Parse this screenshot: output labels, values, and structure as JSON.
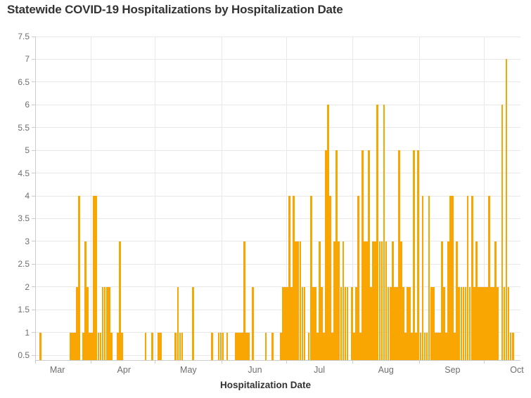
{
  "page": {
    "title": "Statewide COVID-19 Hospitalizations by Hospitalization Date"
  },
  "chart_data": {
    "type": "bar",
    "title": "Statewide COVID-19 Hospitalizations by Hospitalization Date",
    "xlabel": "Hospitalization Date",
    "ylabel": "",
    "legend": "none",
    "grid": "on",
    "bar_color": "#f9a602",
    "grid_color": "#e8e8e8",
    "axis_color": "#cccccc",
    "tick_label_color": "#6e6e6e",
    "title_color": "#333333",
    "ylim": [
      0.39,
      7.5
    ],
    "y_ticks": [
      0.5,
      1,
      1.5,
      2,
      2.5,
      3,
      3.5,
      4,
      4.5,
      5,
      5.5,
      6,
      6.5,
      7,
      7.5
    ],
    "y_tick_labels": [
      "0.5",
      "1",
      "1.5",
      "2",
      "2.5",
      "3",
      "3.5",
      "4",
      "4.5",
      "5",
      "5.5",
      "6",
      "6.5",
      "7",
      "7.5"
    ],
    "x_tick_labels": [
      "Mar",
      "Apr",
      "May",
      "Jun",
      "Jul",
      "Aug",
      "Sep",
      "Oct"
    ],
    "x_domain": [
      "Mar 6",
      "Oct 17"
    ],
    "points_format": [
      "month",
      "day",
      "hospitalizations"
    ],
    "points": [
      [
        "Mar",
        8,
        1
      ],
      [
        "Mar",
        22,
        1
      ],
      [
        "Mar",
        23,
        1
      ],
      [
        "Mar",
        24,
        1
      ],
      [
        "Mar",
        25,
        2
      ],
      [
        "Mar",
        26,
        4
      ],
      [
        "Mar",
        28,
        1
      ],
      [
        "Mar",
        29,
        3
      ],
      [
        "Mar",
        30,
        2
      ],
      [
        "Mar",
        31,
        1
      ],
      [
        "Apr",
        1,
        1
      ],
      [
        "Apr",
        2,
        4
      ],
      [
        "Apr",
        3,
        4
      ],
      [
        "Apr",
        4,
        1
      ],
      [
        "Apr",
        5,
        1
      ],
      [
        "Apr",
        6,
        2
      ],
      [
        "Apr",
        7,
        2
      ],
      [
        "Apr",
        8,
        2
      ],
      [
        "Apr",
        9,
        2
      ],
      [
        "Apr",
        10,
        1
      ],
      [
        "Apr",
        13,
        1
      ],
      [
        "Apr",
        14,
        3
      ],
      [
        "Apr",
        15,
        1
      ],
      [
        "Apr",
        26,
        1
      ],
      [
        "Apr",
        29,
        1
      ],
      [
        "May",
        2,
        1
      ],
      [
        "May",
        3,
        1
      ],
      [
        "May",
        10,
        1
      ],
      [
        "May",
        11,
        2
      ],
      [
        "May",
        12,
        1
      ],
      [
        "May",
        13,
        1
      ],
      [
        "May",
        18,
        2
      ],
      [
        "May",
        27,
        1
      ],
      [
        "May",
        30,
        1
      ],
      [
        "May",
        31,
        1
      ],
      [
        "Jun",
        1,
        1
      ],
      [
        "Jun",
        3,
        1
      ],
      [
        "Jun",
        7,
        1
      ],
      [
        "Jun",
        8,
        1
      ],
      [
        "Jun",
        9,
        1
      ],
      [
        "Jun",
        10,
        1
      ],
      [
        "Jun",
        11,
        3
      ],
      [
        "Jun",
        12,
        1
      ],
      [
        "Jun",
        13,
        1
      ],
      [
        "Jun",
        15,
        2
      ],
      [
        "Jun",
        21,
        1
      ],
      [
        "Jun",
        24,
        1
      ],
      [
        "Jun",
        28,
        1
      ],
      [
        "Jun",
        29,
        2
      ],
      [
        "Jun",
        30,
        2
      ],
      [
        "Jul",
        1,
        2
      ],
      [
        "Jul",
        2,
        4
      ],
      [
        "Jul",
        3,
        2
      ],
      [
        "Jul",
        4,
        4
      ],
      [
        "Jul",
        5,
        3
      ],
      [
        "Jul",
        6,
        3
      ],
      [
        "Jul",
        7,
        3
      ],
      [
        "Jul",
        8,
        2
      ],
      [
        "Jul",
        9,
        2
      ],
      [
        "Jul",
        11,
        1
      ],
      [
        "Jul",
        12,
        4
      ],
      [
        "Jul",
        13,
        2
      ],
      [
        "Jul",
        14,
        2
      ],
      [
        "Jul",
        15,
        1
      ],
      [
        "Jul",
        16,
        3
      ],
      [
        "Jul",
        17,
        2
      ],
      [
        "Jul",
        18,
        1
      ],
      [
        "Jul",
        19,
        5
      ],
      [
        "Jul",
        20,
        6
      ],
      [
        "Jul",
        21,
        4
      ],
      [
        "Jul",
        22,
        1
      ],
      [
        "Jul",
        23,
        3
      ],
      [
        "Jul",
        24,
        5
      ],
      [
        "Jul",
        25,
        3
      ],
      [
        "Jul",
        26,
        2
      ],
      [
        "Jul",
        27,
        3
      ],
      [
        "Jul",
        28,
        2
      ],
      [
        "Jul",
        29,
        2
      ],
      [
        "Jul",
        31,
        2
      ],
      [
        "Aug",
        1,
        1
      ],
      [
        "Aug",
        2,
        2
      ],
      [
        "Aug",
        3,
        4
      ],
      [
        "Aug",
        4,
        1
      ],
      [
        "Aug",
        5,
        5
      ],
      [
        "Aug",
        6,
        3
      ],
      [
        "Aug",
        7,
        3
      ],
      [
        "Aug",
        8,
        5
      ],
      [
        "Aug",
        9,
        2
      ],
      [
        "Aug",
        10,
        3
      ],
      [
        "Aug",
        11,
        3
      ],
      [
        "Aug",
        12,
        6
      ],
      [
        "Aug",
        13,
        3
      ],
      [
        "Aug",
        14,
        3
      ],
      [
        "Aug",
        15,
        6
      ],
      [
        "Aug",
        16,
        3
      ],
      [
        "Aug",
        17,
        2
      ],
      [
        "Aug",
        18,
        2
      ],
      [
        "Aug",
        19,
        3
      ],
      [
        "Aug",
        20,
        2
      ],
      [
        "Aug",
        21,
        2
      ],
      [
        "Aug",
        22,
        5
      ],
      [
        "Aug",
        23,
        3
      ],
      [
        "Aug",
        24,
        2
      ],
      [
        "Aug",
        25,
        1
      ],
      [
        "Aug",
        26,
        2
      ],
      [
        "Aug",
        27,
        2
      ],
      [
        "Aug",
        28,
        1
      ],
      [
        "Aug",
        29,
        5
      ],
      [
        "Aug",
        30,
        1
      ],
      [
        "Aug",
        31,
        5
      ],
      [
        "Sep",
        1,
        1
      ],
      [
        "Sep",
        2,
        4
      ],
      [
        "Sep",
        3,
        1
      ],
      [
        "Sep",
        4,
        1
      ],
      [
        "Sep",
        5,
        4
      ],
      [
        "Sep",
        6,
        2
      ],
      [
        "Sep",
        7,
        2
      ],
      [
        "Sep",
        8,
        1
      ],
      [
        "Sep",
        9,
        1
      ],
      [
        "Sep",
        10,
        1
      ],
      [
        "Sep",
        11,
        3
      ],
      [
        "Sep",
        12,
        2
      ],
      [
        "Sep",
        13,
        1
      ],
      [
        "Sep",
        14,
        3
      ],
      [
        "Sep",
        15,
        4
      ],
      [
        "Sep",
        16,
        4
      ],
      [
        "Sep",
        17,
        1
      ],
      [
        "Sep",
        18,
        3
      ],
      [
        "Sep",
        19,
        2
      ],
      [
        "Sep",
        20,
        2
      ],
      [
        "Sep",
        21,
        2
      ],
      [
        "Sep",
        22,
        2
      ],
      [
        "Sep",
        23,
        4
      ],
      [
        "Sep",
        24,
        2
      ],
      [
        "Sep",
        25,
        4
      ],
      [
        "Sep",
        26,
        2
      ],
      [
        "Sep",
        27,
        3
      ],
      [
        "Sep",
        28,
        2
      ],
      [
        "Sep",
        29,
        2
      ],
      [
        "Sep",
        30,
        2
      ],
      [
        "Oct",
        1,
        2
      ],
      [
        "Oct",
        2,
        2
      ],
      [
        "Oct",
        3,
        4
      ],
      [
        "Oct",
        4,
        2
      ],
      [
        "Oct",
        5,
        2
      ],
      [
        "Oct",
        6,
        3
      ],
      [
        "Oct",
        7,
        2
      ],
      [
        "Oct",
        9,
        6
      ],
      [
        "Oct",
        10,
        2
      ],
      [
        "Oct",
        11,
        7
      ],
      [
        "Oct",
        12,
        2
      ],
      [
        "Oct",
        13,
        1
      ],
      [
        "Oct",
        14,
        1
      ]
    ]
  }
}
